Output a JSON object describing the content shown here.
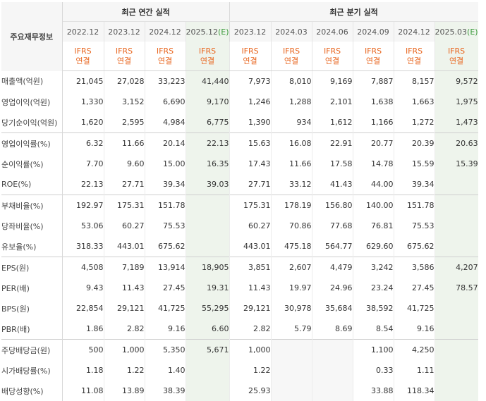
{
  "row_header_title": "주요재무정보",
  "groups": [
    {
      "label": "최근 연간 실적"
    },
    {
      "label": "최근 분기 실적"
    }
  ],
  "periods": [
    {
      "label": "2022.12",
      "suffix": ""
    },
    {
      "label": "2023.12",
      "suffix": ""
    },
    {
      "label": "2024.12",
      "suffix": ""
    },
    {
      "label": "2025.12",
      "suffix": "(E)"
    },
    {
      "label": "2023.12",
      "suffix": ""
    },
    {
      "label": "2024.03",
      "suffix": ""
    },
    {
      "label": "2024.06",
      "suffix": ""
    },
    {
      "label": "2024.09",
      "suffix": ""
    },
    {
      "label": "2024.12",
      "suffix": ""
    },
    {
      "label": "2025.03",
      "suffix": "(E)"
    }
  ],
  "ifrs": {
    "line1": "IFRS",
    "line2": "연결"
  },
  "rows": [
    {
      "label": "매출액(억원)",
      "values": [
        "21,045",
        "27,028",
        "33,223",
        "41,440",
        "7,973",
        "8,010",
        "9,169",
        "7,887",
        "8,157",
        "9,572"
      ]
    },
    {
      "label": "영업이익(억원)",
      "values": [
        "1,330",
        "3,152",
        "6,690",
        "9,170",
        "1,246",
        "1,288",
        "2,101",
        "1,638",
        "1,663",
        "1,975"
      ]
    },
    {
      "label": "당기순이익(억원)",
      "values": [
        "1,620",
        "2,595",
        "4,984",
        "6,775",
        "1,390",
        "934",
        "1,612",
        "1,166",
        "1,272",
        "1,473"
      ]
    },
    {
      "label": "영업이익률(%)",
      "values": [
        "6.32",
        "11.66",
        "20.14",
        "22.13",
        "15.63",
        "16.08",
        "22.91",
        "20.77",
        "20.39",
        "20.63"
      ]
    },
    {
      "label": "순이익률(%)",
      "values": [
        "7.70",
        "9.60",
        "15.00",
        "16.35",
        "17.43",
        "11.66",
        "17.58",
        "14.78",
        "15.59",
        "15.39"
      ]
    },
    {
      "label": "ROE(%)",
      "values": [
        "22.13",
        "27.71",
        "39.34",
        "39.03",
        "27.71",
        "33.12",
        "41.43",
        "44.00",
        "39.34",
        ""
      ]
    },
    {
      "label": "부채비율(%)",
      "values": [
        "192.97",
        "175.31",
        "151.78",
        "",
        "175.31",
        "178.19",
        "156.80",
        "140.00",
        "151.78",
        ""
      ]
    },
    {
      "label": "당좌비율(%)",
      "values": [
        "53.06",
        "60.27",
        "75.53",
        "",
        "60.27",
        "70.86",
        "77.68",
        "76.81",
        "75.53",
        ""
      ]
    },
    {
      "label": "유보율(%)",
      "values": [
        "318.33",
        "443.01",
        "675.62",
        "",
        "443.01",
        "475.18",
        "564.77",
        "629.60",
        "675.62",
        ""
      ]
    },
    {
      "label": "EPS(원)",
      "values": [
        "4,508",
        "7,189",
        "13,914",
        "18,905",
        "3,851",
        "2,607",
        "4,479",
        "3,242",
        "3,586",
        "4,207"
      ]
    },
    {
      "label": "PER(배)",
      "values": [
        "9.43",
        "11.43",
        "27.45",
        "19.31",
        "11.43",
        "19.97",
        "24.96",
        "23.24",
        "27.45",
        "78.57"
      ]
    },
    {
      "label": "BPS(원)",
      "values": [
        "22,854",
        "29,121",
        "41,725",
        "55,295",
        "29,121",
        "30,978",
        "35,684",
        "38,592",
        "41,725",
        ""
      ]
    },
    {
      "label": "PBR(배)",
      "values": [
        "1.86",
        "2.82",
        "9.16",
        "6.60",
        "2.82",
        "5.79",
        "8.69",
        "8.54",
        "9.16",
        ""
      ]
    },
    {
      "label": "주당배당금(원)",
      "values": [
        "500",
        "1,000",
        "5,350",
        "5,671",
        "1,000",
        "",
        "",
        "1,100",
        "4,250",
        ""
      ]
    },
    {
      "label": "시가배당률(%)",
      "values": [
        "1.18",
        "1.22",
        "1.40",
        "",
        "1.22",
        "",
        "",
        "0.33",
        "1.11",
        ""
      ]
    },
    {
      "label": "배당성향(%)",
      "values": [
        "11.08",
        "13.89",
        "38.39",
        "",
        "25.93",
        "",
        "",
        "33.88",
        "118.34",
        ""
      ]
    }
  ],
  "colors": {
    "estimate_bg": "#eef4ec",
    "ifrs_text": "#e8661f",
    "header_bg": "#f6f6f6",
    "empty_bg": "#f7f7f7"
  }
}
